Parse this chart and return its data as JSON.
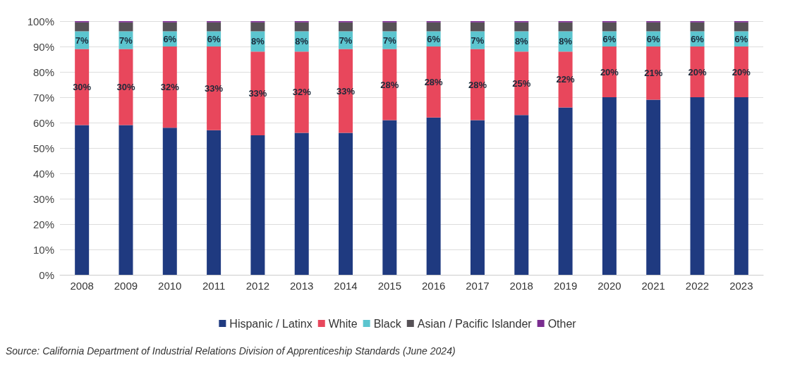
{
  "chart_data": {
    "type": "bar",
    "stacked": true,
    "categories": [
      "2008",
      "2009",
      "2010",
      "2011",
      "2012",
      "2013",
      "2014",
      "2015",
      "2016",
      "2017",
      "2018",
      "2019",
      "2020",
      "2021",
      "2022",
      "2023"
    ],
    "series": [
      {
        "name": "Hispanic / Latinx",
        "color": "#1f3a80",
        "values": [
          59,
          59,
          58,
          57,
          55,
          56,
          56,
          61,
          62,
          61,
          63,
          66,
          70,
          69,
          70,
          70
        ]
      },
      {
        "name": "White",
        "color": "#e8475c",
        "values": [
          30,
          30,
          32,
          33,
          33,
          32,
          33,
          28,
          28,
          28,
          25,
          22,
          20,
          21,
          20,
          20
        ],
        "value_labels": [
          "30%",
          "30%",
          "32%",
          "33%",
          "33%",
          "32%",
          "33%",
          "28%",
          "28%",
          "28%",
          "25%",
          "22%",
          "20%",
          "21%",
          "20%",
          "20%"
        ]
      },
      {
        "name": "Black",
        "color": "#5cc5cf",
        "values": [
          7,
          7,
          6,
          6,
          8,
          8,
          7,
          7,
          6,
          7,
          8,
          8,
          6,
          6,
          6,
          6
        ],
        "value_labels": [
          "7%",
          "7%",
          "6%",
          "6%",
          "8%",
          "8%",
          "7%",
          "7%",
          "6%",
          "7%",
          "8%",
          "8%",
          "6%",
          "6%",
          "6%",
          "6%"
        ]
      },
      {
        "name": "Asian / Pacific Islander",
        "color": "#565156",
        "values": [
          3.5,
          3.5,
          3.5,
          3.5,
          3.5,
          3.5,
          3.5,
          3.5,
          3.5,
          3.5,
          3.5,
          3.5,
          3.5,
          3.5,
          3.5,
          3.5
        ]
      },
      {
        "name": "Other",
        "color": "#7a2d90",
        "values": [
          0.5,
          0.5,
          0.5,
          0.5,
          0.5,
          0.5,
          0.5,
          0.5,
          0.5,
          0.5,
          0.5,
          0.5,
          0.5,
          0.5,
          0.5,
          0.5
        ]
      }
    ],
    "ylim": [
      0,
      100
    ],
    "yticks": [
      {
        "value": 0,
        "label": "0%"
      },
      {
        "value": 10,
        "label": "10%"
      },
      {
        "value": 20,
        "label": "20%"
      },
      {
        "value": 30,
        "label": "30%"
      },
      {
        "value": 40,
        "label": "40%"
      },
      {
        "value": 50,
        "label": "50%"
      },
      {
        "value": 60,
        "label": "60%"
      },
      {
        "value": 70,
        "label": "70%"
      },
      {
        "value": 80,
        "label": "80%"
      },
      {
        "value": 90,
        "label": "90%"
      },
      {
        "value": 100,
        "label": "100%"
      }
    ],
    "grid": "y",
    "legend": "bottom",
    "annotations": [
      "Source: California Department of Industrial Relations Division of Apprenticeship Standards (June 2024)"
    ]
  }
}
